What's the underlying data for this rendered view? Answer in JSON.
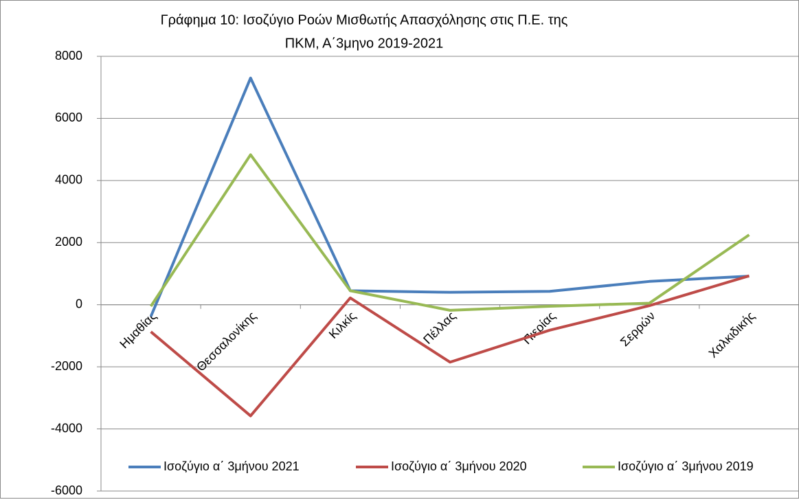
{
  "chart_data": {
    "type": "line",
    "title": [
      "Γράφημα 10: Ισοζύγιο Ροών Μισθωτής Απασχόλησης  στις Π.Ε. της",
      "ΠΚΜ, Α΄3μηνο 2019-2021"
    ],
    "categories": [
      "Ημαθίας",
      "Θεσσαλονίκης",
      "Κιλκίς",
      "Πέλλας",
      "Πιερίας",
      "Σερρών",
      "Χαλκιδικής"
    ],
    "series": [
      {
        "name": "Ισοζύγιο α΄ 3μήνου 2021",
        "color": "#4a7ebb",
        "values": [
          -380,
          7300,
          450,
          400,
          430,
          750,
          920
        ]
      },
      {
        "name": "Ισοζύγιο α΄ 3μήνου 2020",
        "color": "#be4b48",
        "values": [
          -870,
          -3580,
          220,
          -1850,
          -820,
          -30,
          930
        ]
      },
      {
        "name": "Ισοζύγιο α΄ 3μήνου 2019",
        "color": "#98b954",
        "values": [
          -50,
          4830,
          450,
          -180,
          -50,
          50,
          2250
        ]
      }
    ],
    "ylim": [
      -6000,
      8000
    ],
    "yticks": [
      -6000,
      -4000,
      -2000,
      0,
      2000,
      4000,
      6000,
      8000
    ],
    "grid": true,
    "legend": "bottom"
  }
}
